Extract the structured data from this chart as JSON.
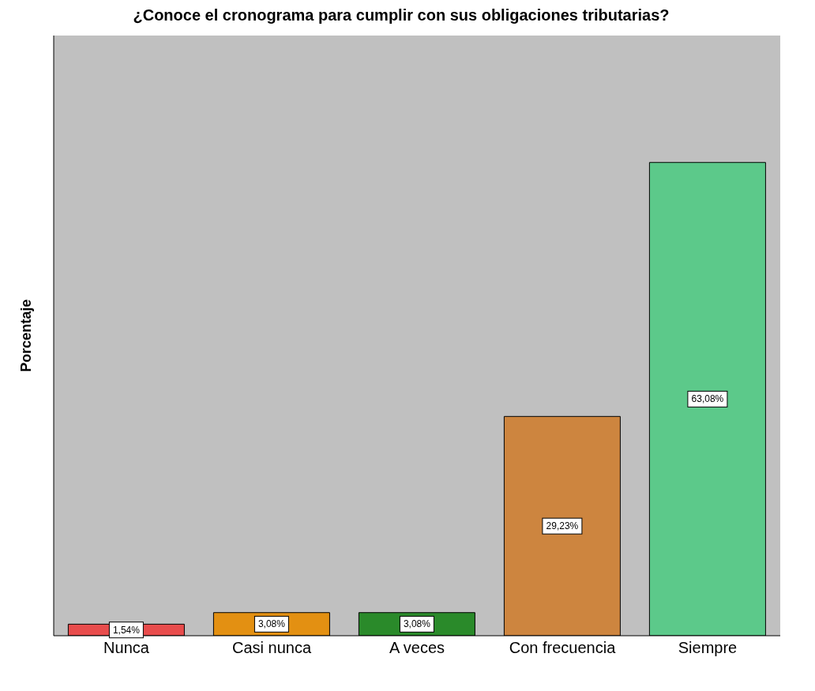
{
  "chart_data": {
    "type": "bar",
    "title": "¿Conoce el cronograma para cumplir con sus obligaciones tributarias?",
    "ylabel": "Porcentaje",
    "categories": [
      "Nunca",
      "Casi nunca",
      "A veces",
      "Con frecuencia",
      "Siempre"
    ],
    "values": [
      1.54,
      3.08,
      3.08,
      29.23,
      63.08
    ],
    "colors": [
      "#e84c4c",
      "#e39012",
      "#2a8a2a",
      "#cd853f",
      "#5cc98a"
    ],
    "value_labels": [
      "1,54%",
      "3,08%",
      "3,08%",
      "29,23%",
      "63,08%"
    ],
    "tick_labels": "x"
  }
}
